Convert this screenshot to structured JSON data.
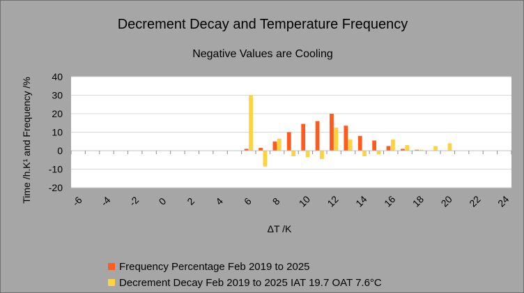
{
  "chart_data": {
    "type": "bar",
    "title": "Decrement Decay and Temperature Frequency",
    "subtitle": "Negative Values are Cooling",
    "xlabel": "ΔT /K",
    "ylabel": "Time /h.K¹ and Frequency /%",
    "ylim": [
      -20,
      40
    ],
    "yticks": [
      -20,
      -10,
      0,
      10,
      20,
      30,
      40
    ],
    "xticks": [
      -6,
      -4,
      -2,
      0,
      2,
      4,
      6,
      8,
      10,
      12,
      14,
      16,
      18,
      20,
      22,
      24
    ],
    "categories": [
      -6,
      -5,
      -4,
      -3,
      -2,
      -1,
      0,
      1,
      2,
      3,
      4,
      5,
      6,
      7,
      8,
      9,
      10,
      11,
      12,
      13,
      14,
      15,
      16,
      17,
      18,
      19,
      20,
      21,
      22,
      23,
      24
    ],
    "grid": "horizontal",
    "legend_position": "bottom",
    "series": [
      {
        "name": "Frequency Percentage Feb 2019 to 2025",
        "color": "#ff5b1f",
        "values": [
          0,
          0,
          0,
          0,
          0,
          0,
          0,
          0,
          0,
          0,
          0,
          0,
          1,
          1.5,
          5,
          10,
          14.5,
          16,
          20,
          13.5,
          8,
          5.5,
          2.5,
          1,
          0.5,
          0.2,
          0.1,
          0,
          0,
          0,
          0
        ]
      },
      {
        "name": "Decrement Decay Feb 2019 to 2025 IAT 19.7 OAT 7.6°C",
        "color": "#ffd23f",
        "values": [
          0,
          0,
          0,
          0,
          0,
          0,
          0,
          0,
          0,
          0,
          0,
          0,
          30,
          -8.5,
          6.5,
          -3,
          -3.5,
          -4.5,
          12.5,
          6,
          -3,
          -2,
          6,
          3,
          0.5,
          2.5,
          4,
          0,
          0,
          0,
          0
        ]
      }
    ]
  }
}
